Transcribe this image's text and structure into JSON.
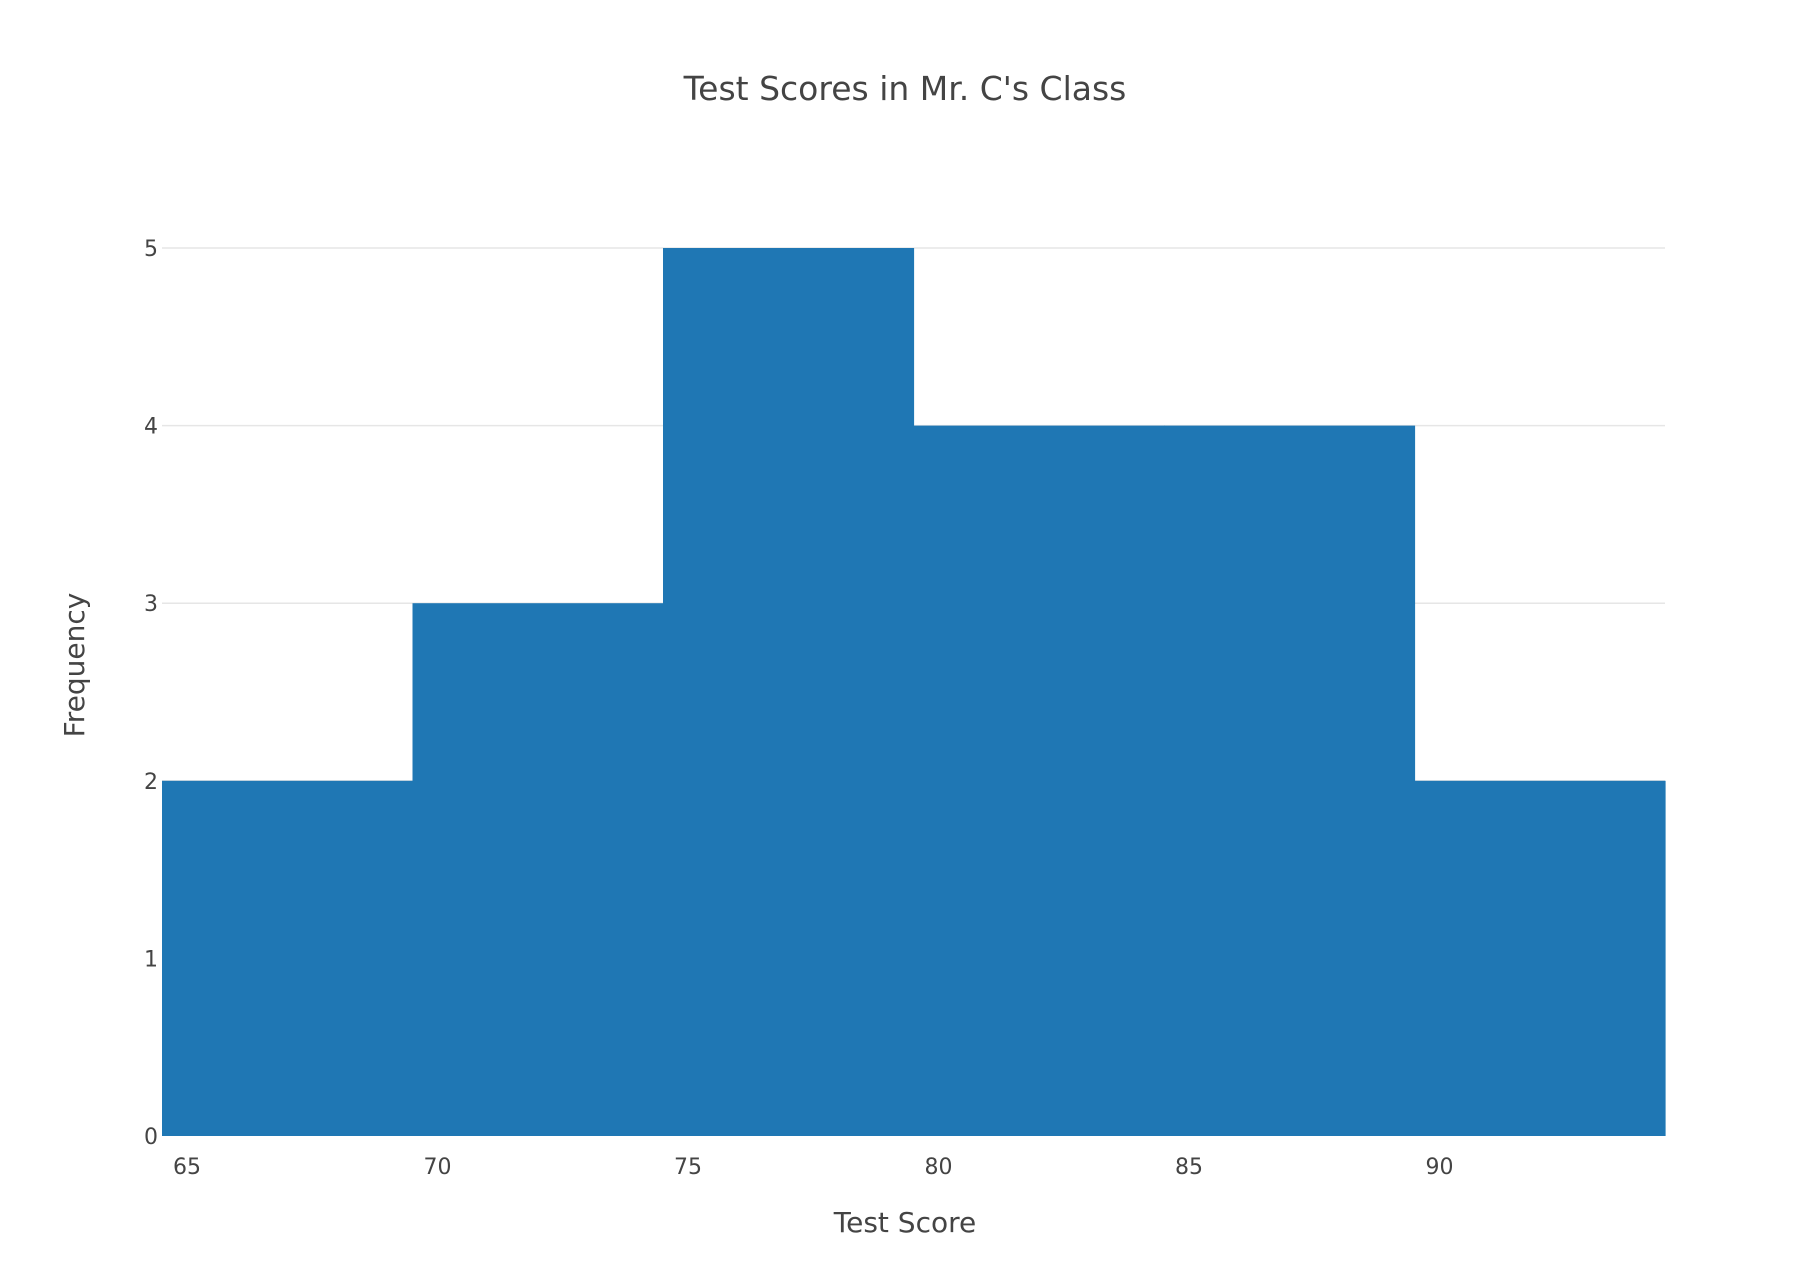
{
  "chart_data": {
    "type": "bar",
    "title": "Test Scores in Mr. C's Class",
    "xlabel": "Test Score",
    "ylabel": "Frequency",
    "bins": [
      {
        "start": 64.5,
        "end": 69.5,
        "count": 2
      },
      {
        "start": 69.5,
        "end": 74.5,
        "count": 3
      },
      {
        "start": 74.5,
        "end": 79.5,
        "count": 5
      },
      {
        "start": 79.5,
        "end": 84.5,
        "count": 4
      },
      {
        "start": 84.5,
        "end": 89.5,
        "count": 4
      },
      {
        "start": 89.5,
        "end": 94.5,
        "count": 2
      }
    ],
    "xlim": [
      64.5,
      94.5
    ],
    "ylim": [
      0,
      5
    ],
    "xticks": [
      65,
      70,
      75,
      80,
      85,
      90
    ],
    "xtick_labels": [
      "65",
      "70",
      "75",
      "80",
      "85",
      "90"
    ],
    "yticks": [
      0,
      1,
      2,
      3,
      4,
      5
    ],
    "ytick_labels": [
      "0",
      "1",
      "2",
      "3",
      "4",
      "5"
    ],
    "grid": true,
    "bar_color": "#1f77b4",
    "legend": false
  }
}
